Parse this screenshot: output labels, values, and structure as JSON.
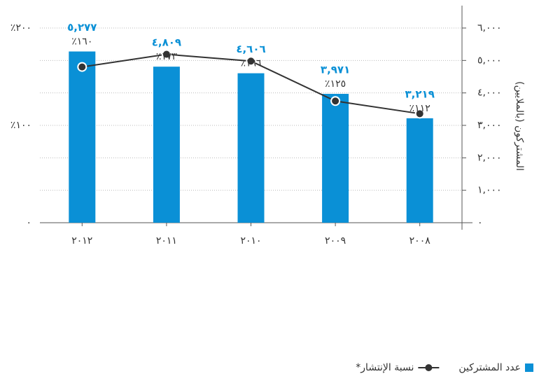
{
  "chart_data": {
    "type": "bar",
    "y_label": "المشتركون (بالملايين)",
    "categories": [
      "٢٠١٢",
      "٢٠١١",
      "٢٠١٠",
      "٢٠٠٩",
      "٢٠٠٨"
    ],
    "series": [
      {
        "name": "عدد المشتركين",
        "type": "bar",
        "color": "#0a90d6",
        "values": [
          5277,
          4809,
          4606,
          3971,
          3219
        ],
        "value_labels": [
          "٥,٢٧٧",
          "٤,٨٠٩",
          "٤,٦٠٦",
          "٣,٩٧١",
          "٣,٢١٩"
        ]
      },
      {
        "name": "نسبة الإنتشار*",
        "type": "line",
        "axis": "y2",
        "color": "#333333",
        "values": [
          160,
          173,
          166,
          125,
          112
        ],
        "value_labels": [
          "٪١٦٠",
          "٪١٧٣",
          "٪١٦٦",
          "٪١٢٥",
          "٪١١٢"
        ]
      }
    ],
    "ylim": [
      0,
      6000
    ],
    "yticks": [
      {
        "value": 0,
        "label": "٠"
      },
      {
        "value": 1000,
        "label": "١,٠٠٠"
      },
      {
        "value": 2000,
        "label": "٢,٠٠٠"
      },
      {
        "value": 3000,
        "label": "٣,٠٠٠"
      },
      {
        "value": 4000,
        "label": "٤,٠٠٠"
      },
      {
        "value": 5000,
        "label": "٥,٠٠٠"
      },
      {
        "value": 6000,
        "label": "٦,٠٠٠"
      }
    ],
    "y2lim": [
      0,
      200
    ],
    "y2ticks": [
      {
        "value": 0,
        "label": "٠"
      },
      {
        "value": 100,
        "label": "٪١٠٠"
      },
      {
        "value": 200,
        "label": "٪٢٠٠"
      }
    ],
    "grid": true
  }
}
